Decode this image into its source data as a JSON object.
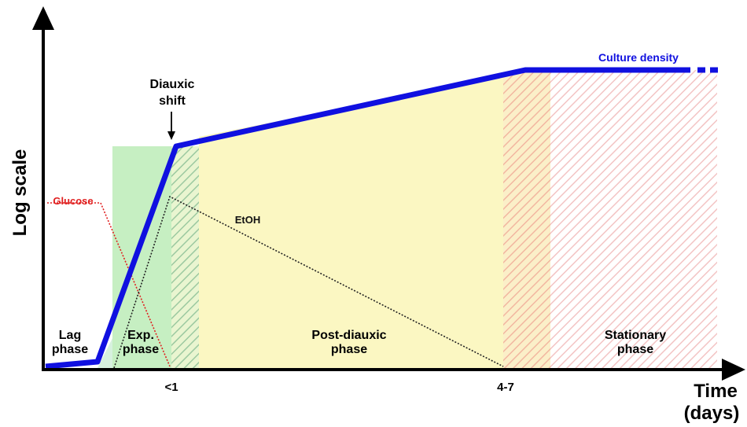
{
  "axes": {
    "y_label": "Log scale",
    "x_label_line1": "Time",
    "x_label_line2": "(days)"
  },
  "ticks": {
    "t1": "<1",
    "t2": "4-7"
  },
  "curves": {
    "culture_density": "Culture density",
    "glucose": "Glucose",
    "etoh": "EtOH"
  },
  "annotation": {
    "line1": "Diauxic",
    "line2": "shift"
  },
  "phases": {
    "lag": [
      "Lag",
      "phase"
    ],
    "exp": [
      "Exp.",
      "phase"
    ],
    "post": [
      "Post-diauxic",
      "phase"
    ],
    "stationary": [
      "Stationary",
      "phase"
    ]
  },
  "colors": {
    "culture": "#1010e0",
    "glucose": "#e02020",
    "etoh": "#222222",
    "exp_fill": "#c8f0c0",
    "post_fill": "#fbf6c0",
    "stationary_hatch": "#f3b8b8"
  }
}
